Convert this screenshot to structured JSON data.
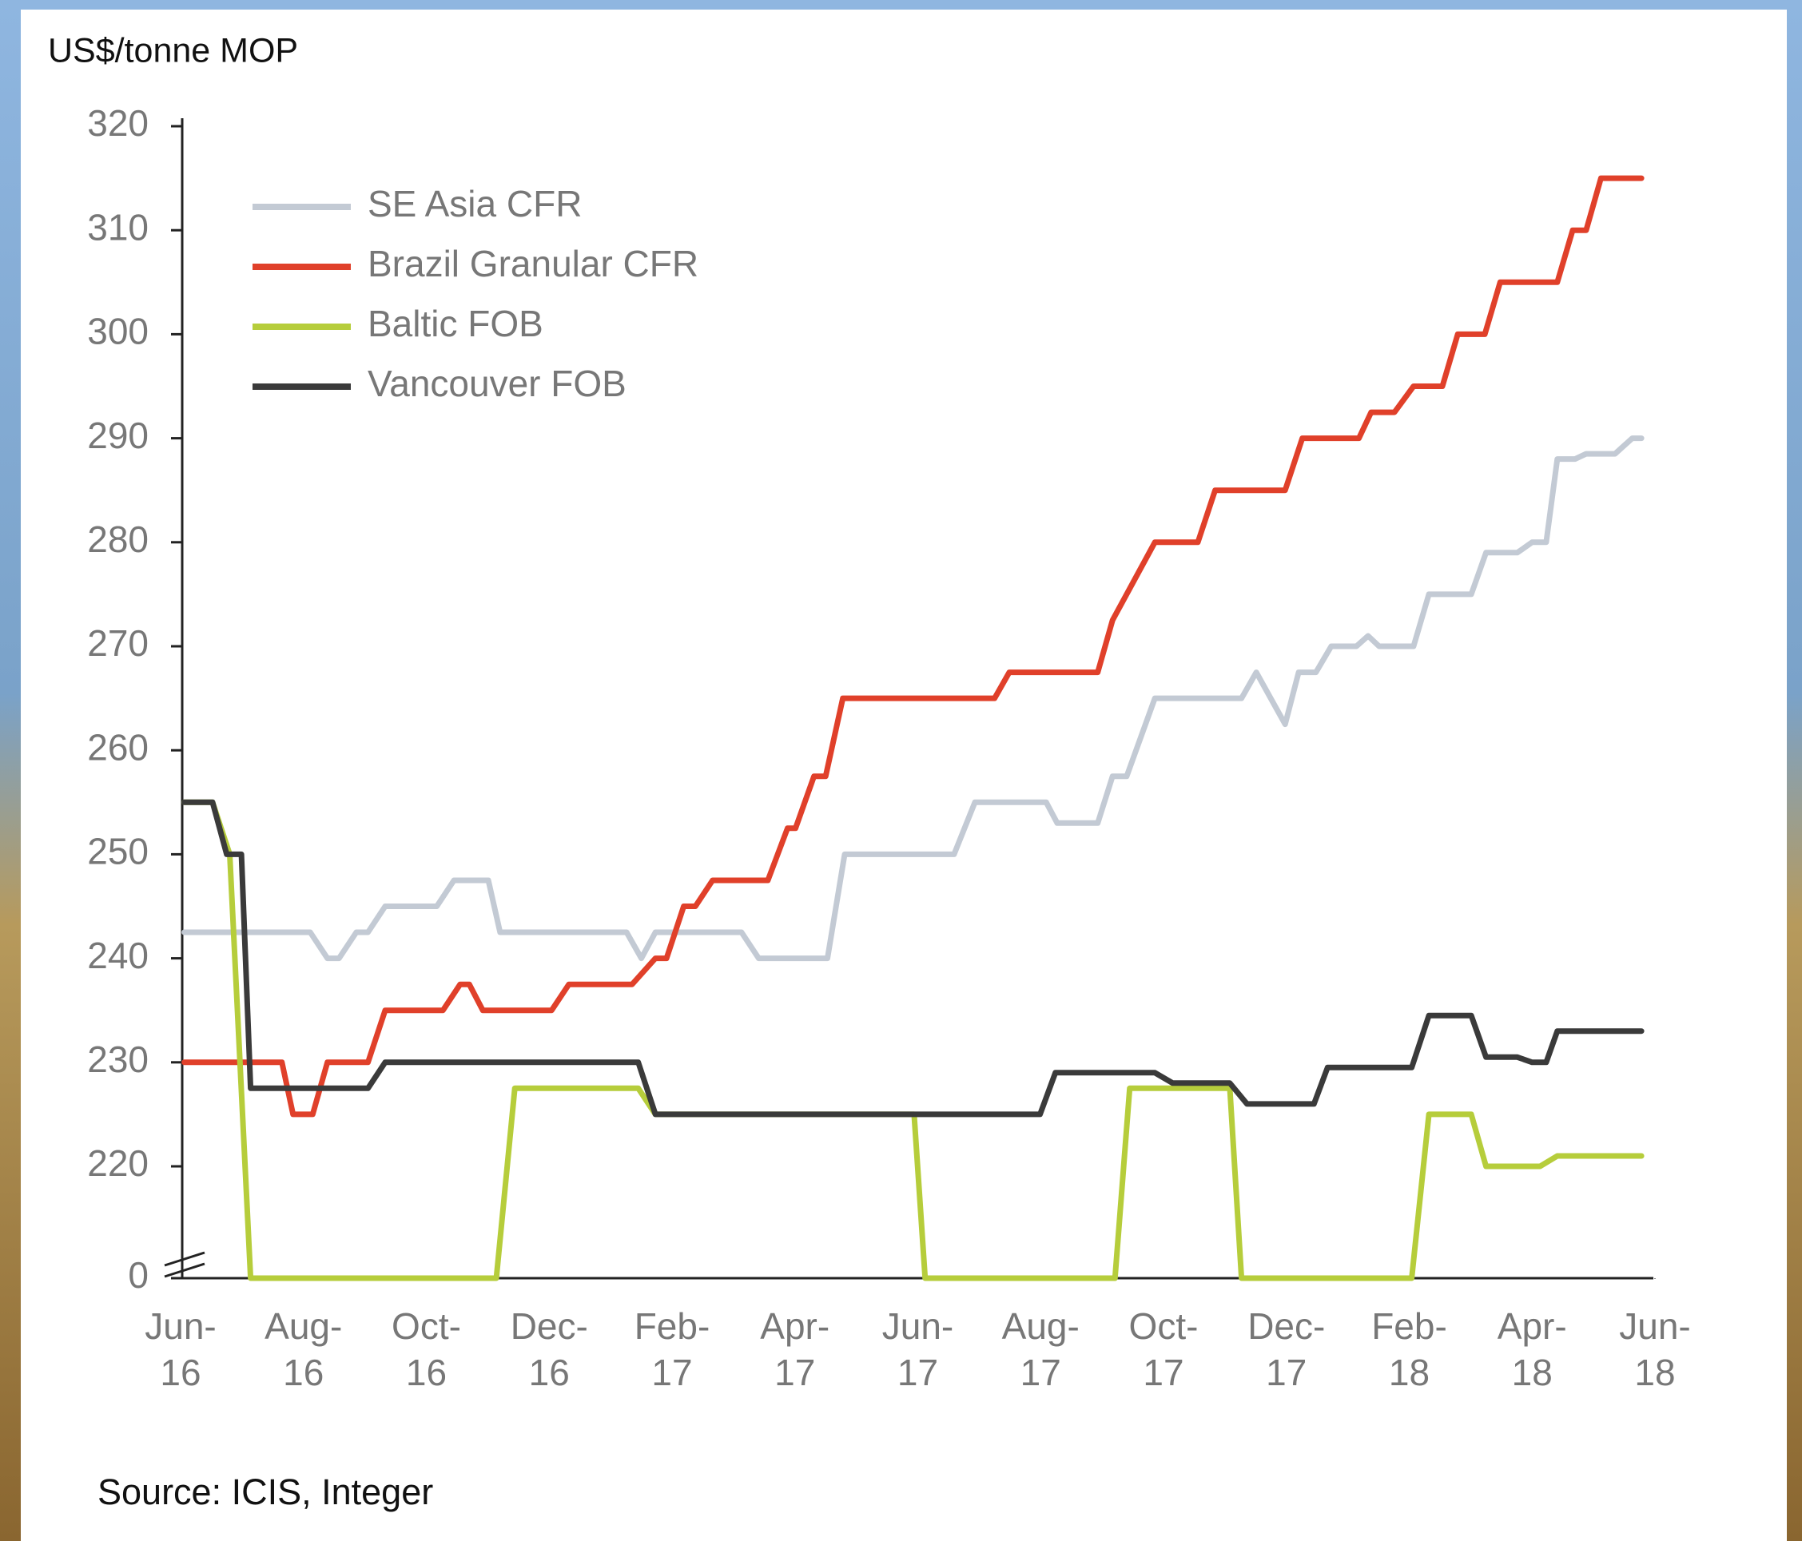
{
  "chart_data": {
    "type": "line",
    "title": "US$/tonne MOP",
    "source": "Source: ICIS, Integer",
    "xlim": [
      0,
      24
    ],
    "xticks": [
      {
        "value": 0,
        "label": "Jun-16"
      },
      {
        "value": 2,
        "label": "Aug-16"
      },
      {
        "value": 4,
        "label": "Oct-16"
      },
      {
        "value": 6,
        "label": "Dec-16"
      },
      {
        "value": 8,
        "label": "Feb-17"
      },
      {
        "value": 10,
        "label": "Apr-17"
      },
      {
        "value": 12,
        "label": "Jun-17"
      },
      {
        "value": 14,
        "label": "Aug-17"
      },
      {
        "value": 16,
        "label": "Oct-17"
      },
      {
        "value": 18,
        "label": "Dec-17"
      },
      {
        "value": 20,
        "label": "Feb-18"
      },
      {
        "value": 22,
        "label": "Apr-18"
      },
      {
        "value": 24,
        "label": "Jun-18"
      }
    ],
    "ylim": [
      0,
      320
    ],
    "yticks": [
      0,
      220,
      230,
      240,
      250,
      260,
      270,
      280,
      290,
      300,
      310,
      320
    ],
    "axis_break": true,
    "grid": false,
    "legend": "upper left",
    "series": [
      {
        "name": "SE Asia CFR",
        "color": "#c3cad4",
        "x": [
          0.06,
          2.11,
          2.39,
          2.58,
          2.86,
          3.05,
          3.33,
          4.17,
          4.45,
          5.01,
          5.2,
          7.26,
          7.5,
          7.73,
          9.13,
          9.41,
          10.53,
          10.81,
          12.59,
          12.93,
          14.09,
          14.27,
          14.93,
          15.17,
          15.4,
          15.86,
          17.27,
          17.51,
          17.98,
          18.2,
          18.48,
          18.73,
          19.14,
          19.33,
          19.51,
          20.07,
          20.32,
          21.01,
          21.25,
          21.76,
          22.0,
          22.23,
          22.41,
          22.7,
          22.88,
          23.35,
          23.63,
          23.78
        ],
        "values": [
          242.5,
          242.5,
          240,
          240,
          242.5,
          242.5,
          245,
          245,
          247.5,
          247.5,
          242.5,
          242.5,
          240,
          242.5,
          242.5,
          240,
          240,
          250,
          250,
          255,
          255,
          253,
          253,
          257.5,
          257.5,
          265,
          265,
          267.5,
          262.5,
          267.5,
          267.5,
          270,
          270,
          271,
          270,
          270,
          275,
          275,
          279,
          279,
          280,
          280,
          288,
          288,
          288.5,
          288.5,
          290,
          290
        ]
      },
      {
        "name": "Brazil Granular CFR",
        "color": "#e0402a",
        "x": [
          0.06,
          1.65,
          1.83,
          2.15,
          2.39,
          3.05,
          3.33,
          4.27,
          4.55,
          4.7,
          4.92,
          6.04,
          6.32,
          7.35,
          7.73,
          7.91,
          8.19,
          8.38,
          8.66,
          9.56,
          9.88,
          10.01,
          10.31,
          10.5,
          10.78,
          13.25,
          13.49,
          14.93,
          15.17,
          15.86,
          16.56,
          16.84,
          17.98,
          18.26,
          19.18,
          19.38,
          19.76,
          20.07,
          20.54,
          20.79,
          21.23,
          21.48,
          22.41,
          22.66,
          22.88,
          23.12,
          23.78
        ],
        "values": [
          230,
          230,
          225,
          225,
          230,
          230,
          235,
          235,
          237.5,
          237.5,
          235,
          235,
          237.5,
          237.5,
          240,
          240,
          245,
          245,
          247.5,
          247.5,
          252.5,
          252.5,
          257.5,
          257.5,
          265,
          265,
          267.5,
          267.5,
          272.5,
          280,
          280,
          285,
          285,
          290,
          290,
          292.5,
          292.5,
          295,
          295,
          300,
          300,
          305,
          305,
          310,
          310,
          315,
          315
        ]
      },
      {
        "name": "Baltic FOB",
        "color": "#b6cd3b",
        "x": [
          0.06,
          0.52,
          0.8,
          1.14,
          1.4,
          5.14,
          5.44,
          7.45,
          7.73,
          11.94,
          12.12,
          13.25,
          13.53,
          15.21,
          15.45,
          17.08,
          17.27,
          17.46,
          18.02,
          18.2,
          18.48,
          18.67,
          20.04,
          20.32,
          21.01,
          21.25,
          22.13,
          22.41,
          23.78
        ],
        "values": [
          255,
          255,
          250,
          215,
          217.5,
          217.5,
          227.5,
          227.5,
          225,
          225,
          215,
          215,
          217.5,
          217.5,
          227.5,
          227.5,
          215,
          217.5,
          217.5,
          212.5,
          212.5,
          217.5,
          217.5,
          225,
          225,
          220,
          220,
          221,
          221
        ]
      },
      {
        "name": "Vancouver FOB",
        "color": "#3a3a3a",
        "x": [
          0.06,
          0.52,
          0.75,
          0.99,
          1.14,
          3.05,
          3.33,
          7.45,
          7.73,
          13.99,
          14.24,
          15.86,
          16.15,
          17.08,
          17.36,
          18.45,
          18.67,
          20.04,
          20.32,
          21.01,
          21.25,
          21.76,
          22.0,
          22.23,
          22.41,
          23.78
        ],
        "values": [
          255,
          255,
          250,
          250,
          227.5,
          227.5,
          230,
          230,
          225,
          225,
          229,
          229,
          228,
          228,
          226,
          226,
          229.5,
          229.5,
          234.5,
          234.5,
          230.5,
          230.5,
          230,
          230,
          233,
          233
        ]
      }
    ]
  }
}
